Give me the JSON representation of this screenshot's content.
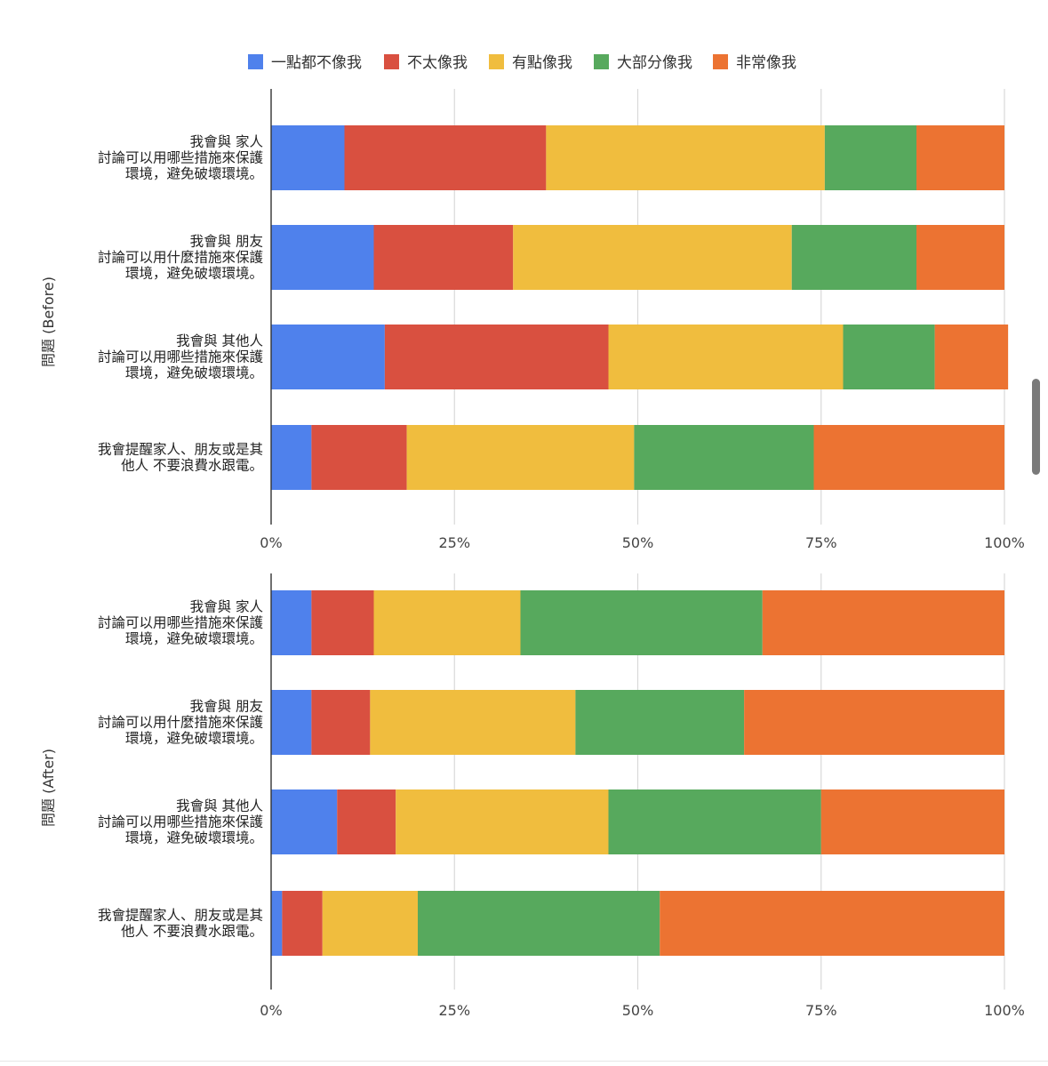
{
  "legend": [
    {
      "label": "一點都不像我",
      "color": "#4F81EC"
    },
    {
      "label": "不太像我",
      "color": "#D95040"
    },
    {
      "label": "有點像我",
      "color": "#F0BD3E"
    },
    {
      "label": "大部分像我",
      "color": "#57A95D"
    },
    {
      "label": "非常像我",
      "color": "#EC7332"
    }
  ],
  "chart_data": [
    {
      "type": "bar",
      "orientation": "horizontal",
      "stacked": "percent",
      "ylabel": "問題 (Before)",
      "xlabel": "",
      "xlim": [
        0,
        100
      ],
      "x_ticks": [
        "0%",
        "25%",
        "50%",
        "75%",
        "100%"
      ],
      "grid": true,
      "legend_position": "top",
      "categories": [
        [
          "我會與 家人",
          "討論可以用哪些措施來保護",
          "環境，避免破壞環境。"
        ],
        [
          "我會與 朋友",
          "討論可以用什麼措施來保護",
          "環境，避免破壞環境。"
        ],
        [
          "我會與 其他人",
          "討論可以用哪些措施來保護",
          "環境，避免破壞環境。"
        ],
        [
          "我會提醒家人、朋友或是其",
          "他人 不要浪費水跟電。"
        ]
      ],
      "series": [
        {
          "name": "一點都不像我",
          "values": [
            10,
            14,
            15.5,
            5.5
          ]
        },
        {
          "name": "不太像我",
          "values": [
            27.5,
            19,
            30.5,
            13
          ]
        },
        {
          "name": "有點像我",
          "values": [
            38,
            38,
            32,
            31
          ]
        },
        {
          "name": "大部分像我",
          "values": [
            12.5,
            17,
            12.5,
            24.5
          ]
        },
        {
          "name": "非常像我",
          "values": [
            12,
            12,
            10,
            26
          ]
        }
      ]
    },
    {
      "type": "bar",
      "orientation": "horizontal",
      "stacked": "percent",
      "ylabel": "問題 (After)",
      "xlabel": "",
      "xlim": [
        0,
        100
      ],
      "x_ticks": [
        "0%",
        "25%",
        "50%",
        "75%",
        "100%"
      ],
      "grid": true,
      "categories": [
        [
          "我會與 家人",
          "討論可以用哪些措施來保護",
          "環境，避免破壞環境。"
        ],
        [
          "我會與 朋友",
          "討論可以用什麼措施來保護",
          "環境，避免破壞環境。"
        ],
        [
          "我會與 其他人",
          "討論可以用哪些措施來保護",
          "環境，避免破壞環境。"
        ],
        [
          "我會提醒家人、朋友或是其",
          "他人 不要浪費水跟電。"
        ]
      ],
      "series": [
        {
          "name": "一點都不像我",
          "values": [
            5.5,
            5.5,
            9,
            1.5
          ]
        },
        {
          "name": "不太像我",
          "values": [
            8.5,
            8,
            8,
            5.5
          ]
        },
        {
          "name": "有點像我",
          "values": [
            20,
            28,
            29,
            13
          ]
        },
        {
          "name": "大部分像我",
          "values": [
            33,
            23,
            29,
            33
          ]
        },
        {
          "name": "非常像我",
          "values": [
            33,
            35.5,
            25,
            47
          ]
        }
      ]
    }
  ]
}
